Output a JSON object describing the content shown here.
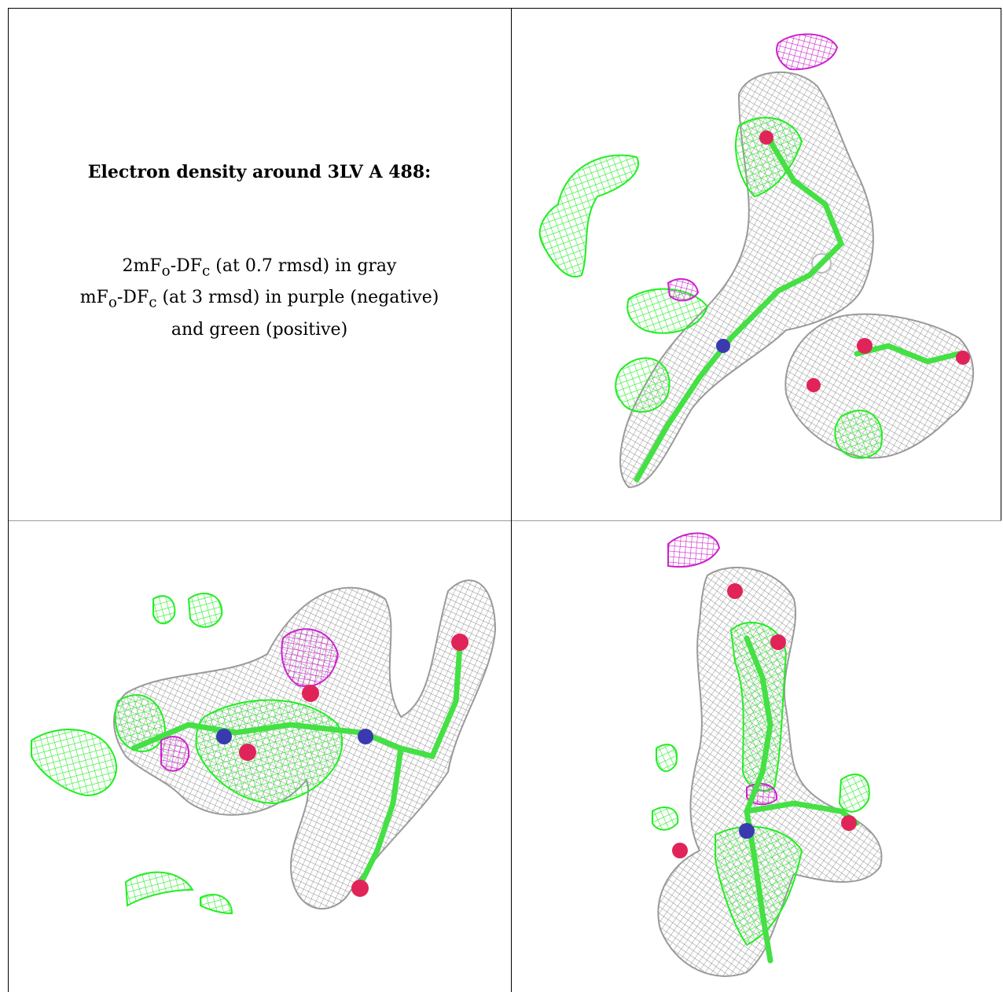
{
  "caption": {
    "title": "Electron density around 3LV A 488:",
    "line1": {
      "prefix": "2mF",
      "sub1": "o",
      "mid": "-DF",
      "sub2": "c",
      "suffix": " (at 0.7 rmsd) in gray"
    },
    "line2": {
      "prefix": "mF",
      "sub1": "o",
      "mid": "-DF",
      "sub2": "c",
      "suffix": " (at 3 rmsd) in purple (negative)"
    },
    "line3": "and green (positive)"
  },
  "colors": {
    "gray_mesh": "#8a8a8a",
    "green_mesh": "#22ee22",
    "purple_mesh": "#cc22cc",
    "oxygen": "#e0245a",
    "nitrogen": "#3a3ab0",
    "border": "#000000"
  },
  "panels": [
    "density-view-1",
    "density-view-2",
    "density-view-3"
  ]
}
